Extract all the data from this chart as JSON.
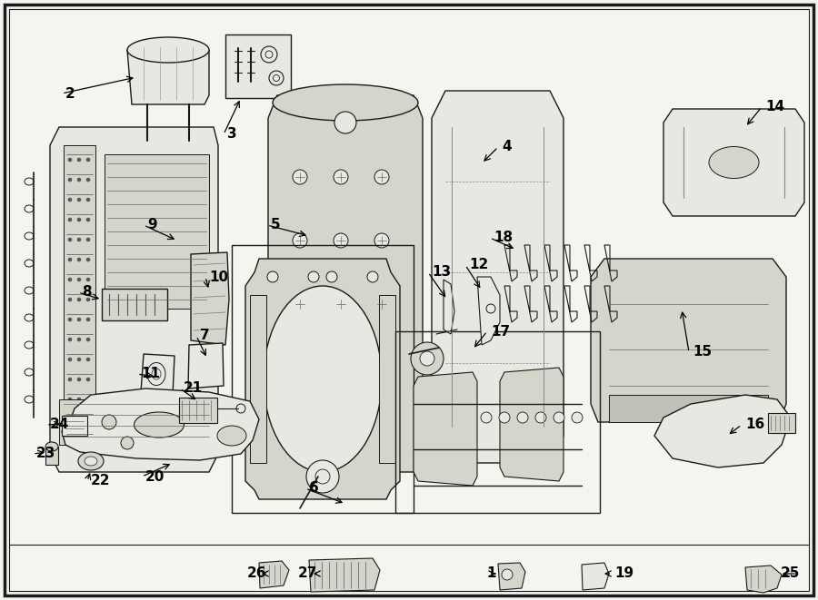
{
  "bg_color": "#f5f5f0",
  "border_color": "#000000",
  "figsize": [
    9.0,
    6.61
  ],
  "dpi": 100,
  "line_color": "#1a1a1a",
  "fill_light": "#e8e8e2",
  "fill_mid": "#d5d5cc",
  "fill_dark": "#c0c0b8"
}
